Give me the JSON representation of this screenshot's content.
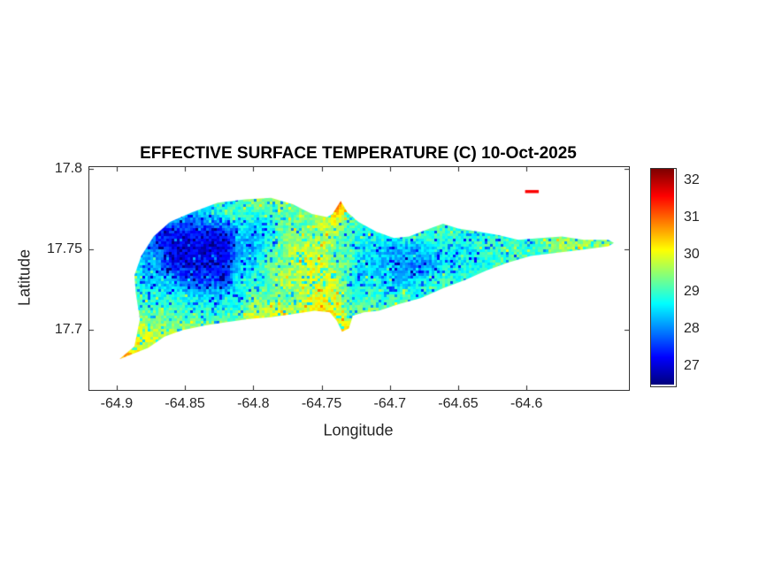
{
  "figure": {
    "background": "#ffffff"
  },
  "chart_data": {
    "type": "heatmap",
    "title": "EFFECTIVE SURFACE TEMPERATURE (C) 10-Oct-2025",
    "xlabel": "Longitude",
    "ylabel": "Latitude",
    "xlim": [
      -64.92,
      -64.525
    ],
    "ylim": [
      17.663,
      17.801
    ],
    "clim": [
      26.5,
      32.3
    ],
    "colormap": "jet",
    "legend_position": "colorbar-right",
    "grid_lines": false,
    "x_ticks": [
      {
        "value": -64.9,
        "label": "-64.9"
      },
      {
        "value": -64.85,
        "label": "-64.85"
      },
      {
        "value": -64.8,
        "label": "-64.8"
      },
      {
        "value": -64.75,
        "label": "-64.75"
      },
      {
        "value": -64.7,
        "label": "-64.7"
      },
      {
        "value": -64.65,
        "label": "-64.65"
      },
      {
        "value": -64.6,
        "label": "-64.6"
      }
    ],
    "y_ticks": [
      {
        "value": 17.8,
        "label": "17.8"
      },
      {
        "value": 17.75,
        "label": "17.75"
      },
      {
        "value": 17.7,
        "label": "17.7"
      }
    ],
    "colorbar_ticks": [
      {
        "value": 27,
        "label": "27"
      },
      {
        "value": 28,
        "label": "28"
      },
      {
        "value": 29,
        "label": "29"
      },
      {
        "value": 30,
        "label": "30"
      },
      {
        "value": 31,
        "label": "31"
      },
      {
        "value": 32,
        "label": "32"
      }
    ],
    "island_polygon": [
      [
        -64.898,
        17.682
      ],
      [
        -64.877,
        17.689
      ],
      [
        -64.865,
        17.696
      ],
      [
        -64.852,
        17.7
      ],
      [
        -64.835,
        17.703
      ],
      [
        -64.819,
        17.705
      ],
      [
        -64.803,
        17.707
      ],
      [
        -64.787,
        17.708
      ],
      [
        -64.771,
        17.71
      ],
      [
        -64.755,
        17.712
      ],
      [
        -64.744,
        17.711
      ],
      [
        -64.739,
        17.706
      ],
      [
        -64.735,
        17.699
      ],
      [
        -64.73,
        17.701
      ],
      [
        -64.727,
        17.709
      ],
      [
        -64.719,
        17.711
      ],
      [
        -64.708,
        17.712
      ],
      [
        -64.694,
        17.716
      ],
      [
        -64.677,
        17.72
      ],
      [
        -64.661,
        17.726
      ],
      [
        -64.645,
        17.731
      ],
      [
        -64.629,
        17.737
      ],
      [
        -64.613,
        17.742
      ],
      [
        -64.597,
        17.746
      ],
      [
        -64.577,
        17.748
      ],
      [
        -64.558,
        17.75
      ],
      [
        -64.54,
        17.752
      ],
      [
        -64.536,
        17.754
      ],
      [
        -64.54,
        17.756
      ],
      [
        -64.558,
        17.756
      ],
      [
        -64.574,
        17.758
      ],
      [
        -64.59,
        17.757
      ],
      [
        -64.606,
        17.756
      ],
      [
        -64.621,
        17.759
      ],
      [
        -64.635,
        17.761
      ],
      [
        -64.65,
        17.763
      ],
      [
        -64.661,
        17.766
      ],
      [
        -64.674,
        17.762
      ],
      [
        -64.686,
        17.758
      ],
      [
        -64.697,
        17.757
      ],
      [
        -64.71,
        17.761
      ],
      [
        -64.723,
        17.767
      ],
      [
        -64.731,
        17.773
      ],
      [
        -64.736,
        17.78
      ],
      [
        -64.742,
        17.772
      ],
      [
        -64.746,
        17.77
      ],
      [
        -64.757,
        17.772
      ],
      [
        -64.771,
        17.778
      ],
      [
        -64.787,
        17.782
      ],
      [
        -64.806,
        17.781
      ],
      [
        -64.826,
        17.779
      ],
      [
        -64.845,
        17.773
      ],
      [
        -64.861,
        17.767
      ],
      [
        -64.873,
        17.758
      ],
      [
        -64.882,
        17.746
      ],
      [
        -64.887,
        17.734
      ],
      [
        -64.886,
        17.723
      ],
      [
        -64.883,
        17.707
      ],
      [
        -64.887,
        17.69
      ]
    ],
    "islets": [
      {
        "name": "buck-island",
        "polygon": [
          [
            -64.601,
            17.7868
          ],
          [
            -64.591,
            17.7868
          ],
          [
            -64.591,
            17.7849
          ],
          [
            -64.601,
            17.7849
          ]
        ],
        "value": 31.6
      }
    ],
    "grid": {
      "lon_start": -64.9,
      "lon_step": 0.01,
      "lat_start": 17.78,
      "lat_step": -0.01,
      "ncols": 37,
      "nrows": 11,
      "values": [
        [
          29.2,
          29.2,
          29.2,
          29.2,
          29.2,
          29.0,
          29.0,
          29.0,
          29.0,
          29.0,
          29.4,
          29.4,
          29.4,
          29.4,
          29.4,
          30.2,
          31.5,
          30.2,
          29.2,
          29.2,
          29.2,
          29.2,
          29.2,
          29.2,
          29.2,
          29.2,
          29.2,
          29.2,
          29.2,
          29.2,
          29.2,
          29.2,
          29.2,
          29.2,
          29.2,
          29.2,
          29.2
        ],
        [
          28.8,
          28.8,
          28.8,
          28.2,
          28.2,
          28.2,
          28.2,
          28.2,
          28.8,
          28.8,
          28.8,
          28.8,
          29.2,
          29.2,
          29.2,
          29.8,
          30.0,
          29.4,
          29.0,
          29.0,
          29.0,
          29.2,
          29.2,
          29.2,
          29.2,
          29.2,
          29.2,
          29.2,
          29.2,
          29.2,
          29.2,
          29.2,
          29.2,
          29.2,
          29.2,
          29.2,
          29.2
        ],
        [
          29.0,
          29.0,
          29.0,
          27.2,
          27.2,
          27.2,
          27.2,
          27.2,
          27.2,
          28.3,
          28.3,
          28.3,
          29.3,
          29.3,
          29.3,
          29.6,
          29.6,
          28.8,
          28.8,
          28.8,
          29.0,
          29.0,
          29.0,
          29.0,
          29.0,
          28.9,
          28.9,
          28.9,
          28.9,
          28.9,
          28.9,
          29.4,
          29.4,
          29.4,
          29.4,
          29.4,
          29.4
        ],
        [
          29.3,
          29.3,
          28.0,
          28.0,
          27.0,
          27.0,
          27.0,
          27.0,
          27.0,
          28.2,
          28.2,
          29.0,
          29.0,
          29.8,
          29.8,
          29.8,
          29.2,
          29.2,
          28.6,
          28.6,
          28.2,
          28.2,
          28.2,
          28.6,
          28.6,
          28.6,
          28.6,
          29.0,
          29.0,
          29.0,
          29.0,
          29.0,
          29.6,
          29.6,
          29.6,
          29.6,
          29.6
        ],
        [
          29.5,
          29.5,
          28.2,
          28.2,
          27.3,
          27.3,
          27.3,
          27.3,
          27.3,
          28.5,
          28.5,
          29.4,
          29.4,
          29.4,
          30.0,
          30.0,
          29.3,
          29.3,
          28.3,
          28.3,
          28.3,
          28.0,
          28.0,
          28.0,
          28.7,
          28.7,
          28.7,
          28.7,
          29.1,
          29.1,
          29.1,
          29.1,
          29.1,
          29.7,
          29.7,
          29.7,
          29.7
        ],
        [
          29.6,
          29.6,
          28.4,
          28.4,
          28.4,
          27.6,
          27.6,
          27.6,
          27.6,
          28.9,
          28.9,
          28.9,
          29.7,
          29.7,
          29.7,
          29.9,
          29.9,
          28.7,
          28.7,
          28.7,
          28.4,
          28.4,
          28.4,
          28.9,
          28.9,
          28.9,
          28.9,
          29.3,
          29.3,
          29.3,
          29.3,
          29.8,
          29.8,
          29.8,
          29.8,
          29.8,
          29.8
        ],
        [
          29.4,
          29.4,
          28.8,
          28.8,
          28.8,
          28.8,
          28.6,
          28.6,
          28.6,
          28.6,
          29.3,
          29.3,
          29.3,
          29.3,
          30.0,
          30.0,
          30.0,
          29.0,
          29.0,
          29.0,
          29.0,
          29.0,
          29.0,
          29.0,
          29.5,
          29.5,
          29.5,
          29.5,
          29.5,
          29.9,
          29.9,
          29.9,
          29.9,
          29.9,
          29.9,
          29.9,
          29.9
        ],
        [
          29.8,
          29.2,
          29.2,
          29.2,
          29.2,
          29.0,
          29.0,
          29.0,
          29.0,
          29.0,
          29.8,
          29.8,
          29.8,
          29.8,
          29.8,
          30.2,
          30.2,
          29.4,
          29.4,
          29.4,
          29.4,
          29.6,
          29.6,
          29.6,
          29.6,
          29.6,
          29.6,
          29.6,
          29.6,
          29.6,
          29.6,
          29.6,
          29.6,
          29.6,
          29.6,
          29.6,
          29.6
        ],
        [
          29.9,
          29.9,
          29.9,
          29.6,
          29.6,
          29.6,
          29.6,
          29.6,
          29.6,
          30.0,
          30.0,
          30.0,
          30.0,
          30.0,
          30.0,
          30.3,
          30.3,
          30.2,
          29.5,
          29.5,
          29.5,
          29.5,
          29.5,
          29.5,
          29.5,
          29.5,
          29.5,
          29.5,
          29.5,
          29.5,
          29.5,
          29.5,
          29.5,
          29.5,
          29.5,
          29.5,
          29.5
        ],
        [
          30.6,
          30.6,
          29.8,
          29.8,
          29.8,
          29.8,
          29.8,
          29.6,
          29.6,
          29.6,
          29.6,
          29.6,
          29.6,
          29.6,
          29.6,
          29.6,
          29.6,
          29.6,
          29.6,
          29.6,
          29.6,
          29.6,
          29.6,
          29.6,
          29.6,
          29.6,
          29.6,
          29.6,
          29.6,
          29.6,
          29.6,
          29.6,
          29.6,
          29.6,
          29.6,
          29.6,
          29.6
        ],
        [
          31.3,
          30.0,
          30.0,
          30.0,
          30.0,
          30.0,
          30.0,
          30.0,
          30.0,
          30.0,
          30.0,
          30.0,
          30.0,
          30.0,
          30.0,
          30.0,
          30.0,
          30.0,
          30.0,
          30.0,
          30.0,
          30.0,
          30.0,
          30.0,
          30.0,
          30.0,
          30.0,
          30.0,
          30.0,
          30.0,
          30.0,
          30.0,
          30.0,
          30.0,
          30.0,
          30.0,
          30.0
        ]
      ]
    },
    "speckle": {
      "amplitude": 0.8,
      "cold_fraction": 0.1,
      "cold_drop": 1.1,
      "hot_fraction": 0.03,
      "hot_boost": 0.7
    }
  }
}
